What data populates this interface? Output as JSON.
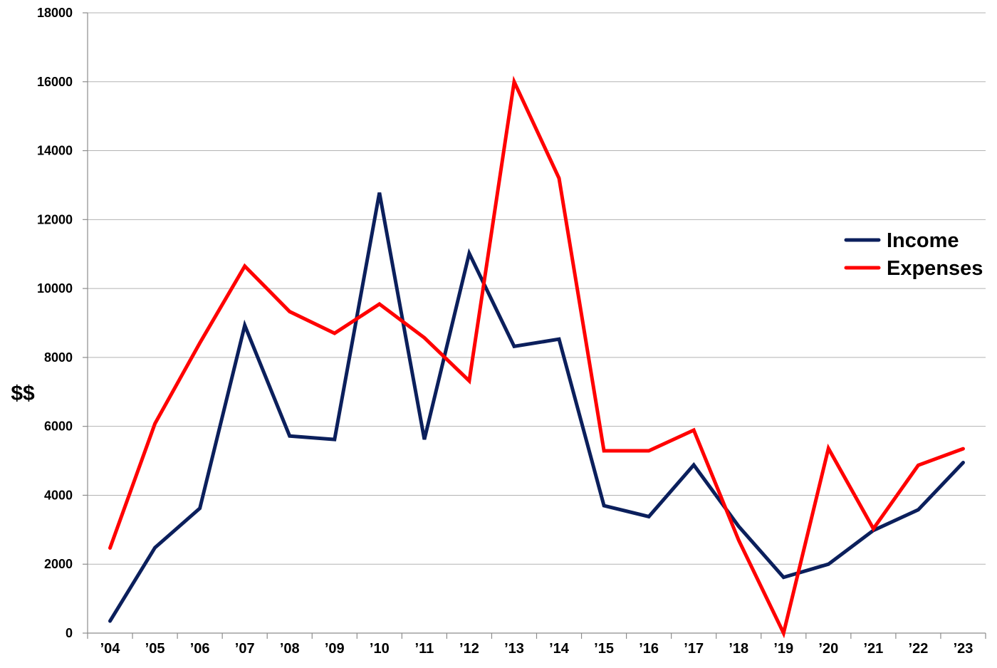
{
  "chart_data": {
    "type": "line",
    "title": "",
    "xlabel": "",
    "ylabel": "$$",
    "ylim": [
      0,
      18000
    ],
    "yticks": [
      0,
      2000,
      4000,
      6000,
      8000,
      10000,
      12000,
      14000,
      16000,
      18000
    ],
    "ytick_labels": [
      "0",
      "2000",
      "4000",
      "6000",
      "8000",
      "10000",
      "12000",
      "14000",
      "16000",
      "18000"
    ],
    "grid": true,
    "legend_position": "right",
    "categories": [
      "’04",
      "’05",
      "’06",
      "’07",
      "’08",
      "’09",
      "’10",
      "’11",
      "’12",
      "’13",
      "’14",
      "’15",
      "’16",
      "’17",
      "’18",
      "’19",
      "’20",
      "’21",
      "’22",
      "’23"
    ],
    "series": [
      {
        "name": "Income",
        "color": "#0b1f5c",
        "values": [
          350,
          2480,
          3620,
          8930,
          5720,
          5620,
          12780,
          5620,
          11020,
          8320,
          8530,
          3700,
          3380,
          4880,
          3100,
          1620,
          2000,
          2980,
          3580,
          4950
        ]
      },
      {
        "name": "Expenses",
        "color": "#ff0000",
        "values": [
          2470,
          6080,
          8420,
          10650,
          9330,
          8700,
          9550,
          8570,
          7320,
          16000,
          13200,
          5290,
          5290,
          5890,
          2700,
          0,
          5360,
          3030,
          4870,
          5350
        ]
      }
    ]
  }
}
